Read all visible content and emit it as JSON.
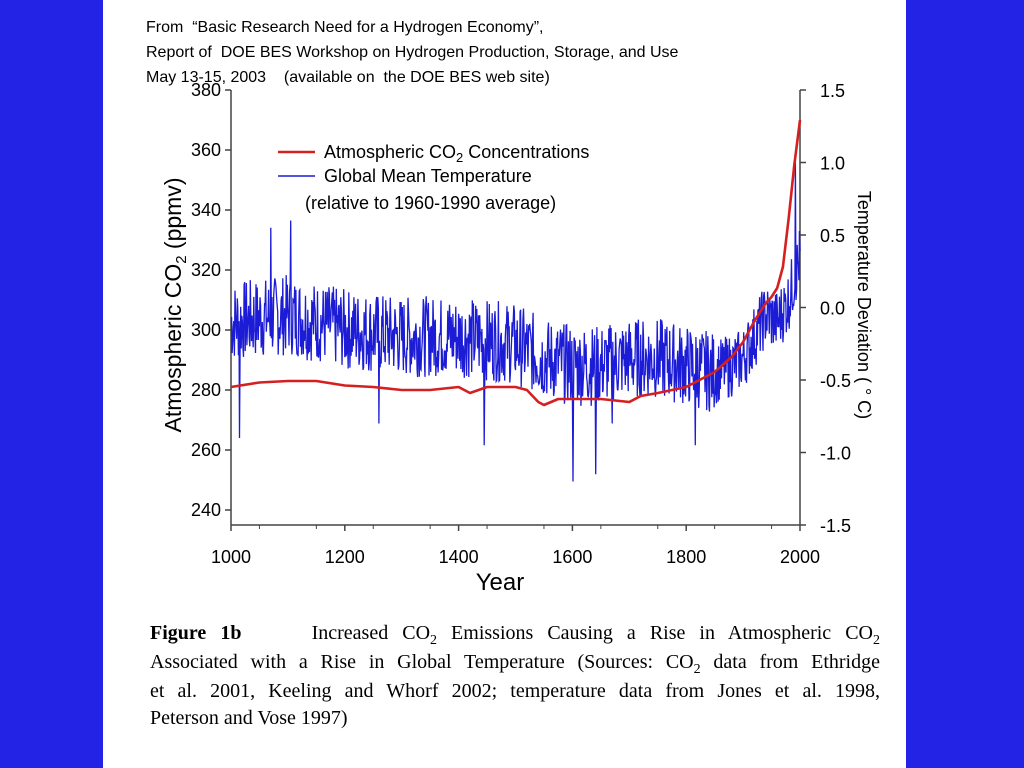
{
  "source": {
    "line1": "From  “Basic Research Need for a Hydrogen Economy”,",
    "line2": "Report of  DOE BES Workshop on Hydrogen Production, Storage, and Use",
    "line3": "May 13-15, 2003    (available on  the DOE BES web site)"
  },
  "colors": {
    "background": "#2323e6",
    "co2": "#d42020",
    "temperature": "#1c1cd6"
  },
  "chart_data": {
    "type": "line",
    "xlabel": "Year",
    "ylabel_left": {
      "base": "Atmospheric CO",
      "sub": "2",
      "tail": "  (ppmv)"
    },
    "ylabel_right": "Temperature Deviation ( ° C)",
    "xlim": [
      1000,
      2000
    ],
    "ylim_left": [
      235,
      380
    ],
    "ylim_right": [
      -1.5,
      1.5
    ],
    "x_ticks": [
      "1000",
      "1200",
      "1400",
      "1600",
      "1800",
      "2000"
    ],
    "y_left_ticks": [
      "380",
      "360",
      "340",
      "320",
      "300",
      "280",
      "260",
      "240"
    ],
    "y_right_ticks": [
      "1.5",
      "1.0",
      "0.5",
      "0.0",
      "-0.5",
      "-1.0",
      "-1.5"
    ],
    "legend": {
      "placement": "top-left",
      "co2_label": {
        "base": "Atmospheric CO",
        "sub": "2",
        "tail": "    Concentrations"
      },
      "temp_label": "Global Mean Temperature",
      "note": "(relative to 1960-1990 average)"
    },
    "series": [
      {
        "name_key": "co2",
        "axis": "left",
        "x": [
          1000,
          1050,
          1100,
          1150,
          1200,
          1250,
          1300,
          1350,
          1400,
          1420,
          1450,
          1500,
          1520,
          1540,
          1550,
          1575,
          1600,
          1650,
          1700,
          1720,
          1750,
          1800,
          1830,
          1850,
          1880,
          1900,
          1920,
          1940,
          1950,
          1960,
          1970,
          1980,
          1990,
          2000
        ],
        "values": [
          281,
          282.5,
          283,
          283,
          281.5,
          281,
          280,
          280,
          281,
          279,
          281,
          281,
          280,
          276,
          275,
          277,
          277,
          277,
          276,
          278,
          279,
          281,
          284,
          286,
          291,
          296,
          303,
          309,
          311,
          314,
          321,
          337,
          355,
          370
        ]
      },
      {
        "name_key": "temperature",
        "axis": "right",
        "approximate": true,
        "trend_years": [
          1000,
          1100,
          1200,
          1300,
          1400,
          1500,
          1550,
          1600,
          1650,
          1700,
          1750,
          1800,
          1850,
          1880,
          1900,
          1920,
          1940,
          1960,
          1980,
          2000
        ],
        "trend_values": [
          -0.1,
          -0.05,
          -0.15,
          -0.2,
          -0.2,
          -0.25,
          -0.35,
          -0.4,
          -0.4,
          -0.35,
          -0.35,
          -0.4,
          -0.45,
          -0.4,
          -0.35,
          -0.2,
          -0.05,
          -0.1,
          0.05,
          0.35
        ],
        "spikes": [
          {
            "x": 1015,
            "y": -0.9
          },
          {
            "x": 1070,
            "y": 0.55
          },
          {
            "x": 1105,
            "y": 0.6
          },
          {
            "x": 1260,
            "y": -0.8
          },
          {
            "x": 1445,
            "y": -0.95
          },
          {
            "x": 1601,
            "y": -1.2
          },
          {
            "x": 1641,
            "y": -1.15
          },
          {
            "x": 1670,
            "y": -0.8
          },
          {
            "x": 1816,
            "y": -0.95
          },
          {
            "x": 1992,
            "y": 1.0
          }
        ]
      }
    ]
  },
  "caption": {
    "label": "Figure 1b",
    "rows": [
      {
        "parts": [
          "Increased CO",
          "2",
          " Emissions Causing a Rise in Atmospheric CO",
          "2"
        ]
      },
      {
        "parts": [
          "Associated with a Rise in Global Temperature (Sources: CO",
          "2",
          " data from Ethridge"
        ]
      },
      {
        "parts": [
          "et al. 2001, Keeling and Whorf 2002; temperature data from Jones et al. 1998,"
        ]
      },
      {
        "parts": [
          "Peterson and Vose 1997)"
        ]
      }
    ]
  }
}
